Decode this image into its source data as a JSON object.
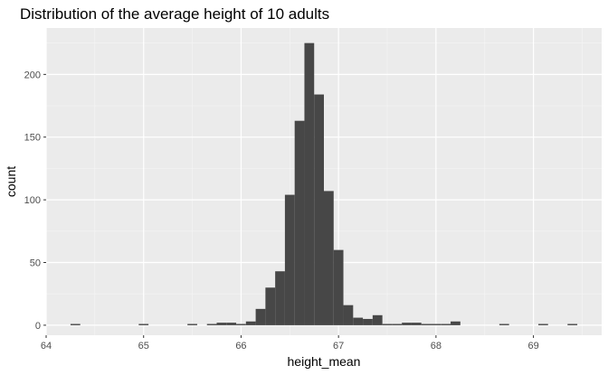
{
  "chart_data": {
    "type": "bar",
    "title": "Distribution of the average height of 10 adults",
    "xlabel": "height_mean",
    "ylabel": "count",
    "xlim": [
      64,
      69.7
    ],
    "ylim": [
      -8,
      237
    ],
    "grid": true,
    "legend": "none",
    "bin_width": 0.1,
    "x_ticks": [
      64,
      65,
      66,
      67,
      68,
      69
    ],
    "x_tick_labels": [
      "64",
      "65",
      "66",
      "67",
      "68",
      "69"
    ],
    "y_ticks": [
      0,
      50,
      100,
      150,
      200
    ],
    "y_tick_labels": [
      "0",
      "50",
      "100",
      "150",
      "200"
    ],
    "x": [
      64.3,
      65.0,
      65.5,
      65.7,
      65.8,
      65.9,
      66.0,
      66.1,
      66.2,
      66.3,
      66.4,
      66.5,
      66.6,
      66.7,
      66.8,
      66.9,
      67.0,
      67.1,
      67.2,
      67.3,
      67.4,
      67.5,
      67.6,
      67.7,
      67.8,
      67.9,
      68.0,
      68.1,
      68.2,
      68.7,
      69.1,
      69.4
    ],
    "values": [
      1,
      1,
      1,
      1,
      2,
      2,
      1,
      3,
      13,
      30,
      43,
      104,
      163,
      225,
      184,
      107,
      60,
      16,
      6,
      5,
      8,
      1,
      1,
      2,
      2,
      1,
      1,
      1,
      3,
      1,
      1,
      1
    ],
    "colors": {
      "bar": "#474747",
      "panel": "#ebebeb",
      "grid_major": "#ffffff",
      "grid_minor": "#f5f5f5",
      "tick_text": "#4d4d4d",
      "tick_mark": "#333333"
    }
  }
}
